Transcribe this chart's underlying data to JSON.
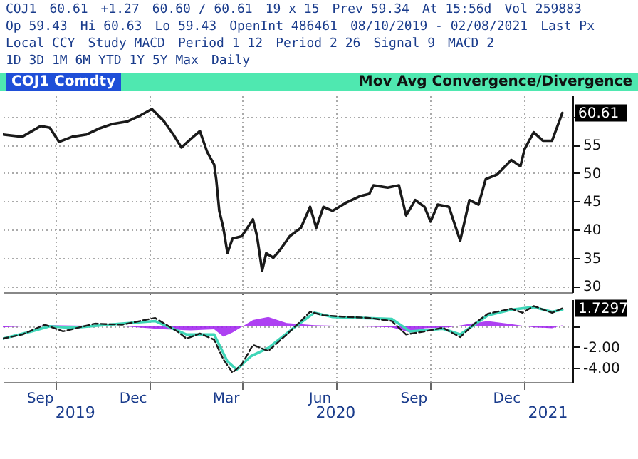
{
  "chart_data": [
    {
      "type": "line",
      "title": "COJ1 Comdty",
      "subtitle": "Mov Avg Convergence/Divergence",
      "annotations": [
        "COJ1",
        "60.61",
        "+1.27",
        "60.60 / 60.61",
        "19 x 15",
        "Prev 59.34",
        "At 15:56d",
        "Vol 259883",
        "Op 59.43",
        "Hi 60.63",
        "Lo 59.43",
        "OpenInt 486461",
        "08/10/2019 - 02/08/2021",
        "Last Px",
        "Local CCY",
        "Study MACD",
        "Period 1 12",
        "Period 2 26",
        "Signal 9",
        "MACD 2",
        "1D 3D 1M 6M YTD 1Y 5Y Max",
        "Daily",
        {
          "text": "60.61",
          "y": 60.61
        }
      ],
      "x": [
        "2019-08-10",
        "2019-08-29",
        "2019-09-16",
        "2019-09-25",
        "2019-10-04",
        "2019-10-17",
        "2019-10-31",
        "2019-11-13",
        "2019-11-26",
        "2019-12-10",
        "2019-12-23",
        "2020-01-03",
        "2020-01-15",
        "2020-01-24",
        "2020-02-01",
        "2020-02-10",
        "2020-02-19",
        "2020-02-26",
        "2020-03-04",
        "2020-03-06",
        "2020-03-09",
        "2020-03-13",
        "2020-03-17",
        "2020-03-22",
        "2020-03-31",
        "2020-04-11",
        "2020-04-15",
        "2020-04-20",
        "2020-04-24",
        "2020-05-01",
        "2020-05-08",
        "2020-05-17",
        "2020-05-28",
        "2020-06-06",
        "2020-06-12",
        "2020-06-19",
        "2020-06-28",
        "2020-07-12",
        "2020-07-25",
        "2020-08-03",
        "2020-08-07",
        "2020-08-21",
        "2020-09-01",
        "2020-09-08",
        "2020-09-17",
        "2020-09-26",
        "2020-10-02",
        "2020-10-09",
        "2020-10-20",
        "2020-10-31",
        "2020-11-09",
        "2020-11-18",
        "2020-11-25",
        "2020-12-06",
        "2020-12-20",
        "2020-12-29",
        "2021-01-02",
        "2021-01-11",
        "2021-01-20",
        "2021-01-29",
        "2021-02-08"
      ],
      "series": [
        {
          "color": "#1a1a1a",
          "values": [
            56.8,
            56.4,
            58.3,
            58,
            55.5,
            56.4,
            56.8,
            57.9,
            58.7,
            59.1,
            60.2,
            61.3,
            59.1,
            56.8,
            54.5,
            56,
            57.4,
            53.8,
            51.5,
            48.9,
            43.3,
            40.3,
            35.8,
            38.4,
            38.8,
            41.8,
            38.8,
            32.7,
            35.8,
            35,
            36.5,
            38.8,
            40.3,
            44,
            40.3,
            44,
            43.3,
            44.8,
            45.9,
            46.3,
            47.8,
            47.4,
            47.8,
            42.5,
            45.2,
            44,
            41.4,
            44.4,
            44,
            38,
            45.2,
            44.4,
            48.9,
            49.7,
            52.3,
            51.2,
            54.2,
            57.2,
            55.7,
            55.7,
            60.61
          ]
        }
      ],
      "xlim": [
        "2019-08-10",
        "2021-02-18"
      ],
      "xticks": [
        {
          "value": "2019-10-01",
          "label": null
        },
        {
          "value": "2020-01-01",
          "label": null
        },
        {
          "value": "2020-04-01",
          "label": null
        },
        {
          "value": "2020-07-01",
          "label": null
        },
        {
          "value": "2020-10-01",
          "label": null
        },
        {
          "value": "2021-01-01",
          "label": null
        }
      ],
      "ylim": [
        28.9,
        63.7
      ],
      "yticks": [
        30,
        35,
        40,
        45,
        50,
        55,
        {
          "value": 60,
          "label": null
        }
      ],
      "grid": true,
      "tick_labels": "y"
    },
    {
      "type": "line",
      "annotations": [
        {
          "text": "1.7297",
          "y": 1.7297
        }
      ],
      "series": [
        {
          "type": "area",
          "color": "#a020f0",
          "x": [
            "2019-08-10",
            "2019-09-25",
            "2019-12-05",
            "2020-01-15",
            "2020-02-10",
            "2020-03-04",
            "2020-03-13",
            "2020-03-22",
            "2020-04-11",
            "2020-04-26",
            "2020-05-14",
            "2020-06-10",
            "2020-08-25",
            "2020-09-12",
            "2020-09-26",
            "2020-10-20",
            "2020-11-14",
            "2020-11-27",
            "2020-12-20",
            "2021-01-11",
            "2021-01-29",
            "2021-02-08"
          ],
          "values": [
            -0.1,
            0.1,
            0,
            -0.3,
            -0.4,
            -0.3,
            -1.0,
            -0.6,
            0.6,
            0.9,
            0.3,
            0.1,
            -0.1,
            -0.6,
            -0.2,
            -0.1,
            0.3,
            0.5,
            0.2,
            -0.1,
            -0.2,
            0.1
          ]
        },
        {
          "color": "#3fd6b8",
          "x": [
            "2019-08-10",
            "2019-09-07",
            "2019-09-25",
            "2019-10-17",
            "2019-12-05",
            "2020-01-06",
            "2020-02-06",
            "2020-03-04",
            "2020-03-17",
            "2020-03-26",
            "2020-04-09",
            "2020-04-26",
            "2020-05-23",
            "2020-06-10",
            "2020-06-28",
            "2020-08-25",
            "2020-09-12",
            "2020-10-14",
            "2020-10-31",
            "2020-11-27",
            "2020-12-20",
            "2021-01-11",
            "2021-01-29",
            "2021-02-08"
          ],
          "values": [
            -1.2,
            -0.5,
            0,
            -0.15,
            0.25,
            0.5,
            -0.8,
            -0.8,
            -3.4,
            -4.2,
            -2.9,
            -2.1,
            0,
            1.3,
            0.9,
            0.7,
            -0.5,
            -0.25,
            -0.8,
            1.05,
            1.6,
            1.85,
            1.4,
            1.6
          ]
        },
        {
          "color": "#1a1a1a",
          "line_style": "dashed",
          "x": [
            "2019-08-10",
            "2019-08-29",
            "2019-09-20",
            "2019-10-08",
            "2019-11-08",
            "2019-12-05",
            "2020-01-06",
            "2020-01-28",
            "2020-02-06",
            "2020-02-19",
            "2020-03-04",
            "2020-03-13",
            "2020-03-22",
            "2020-03-31",
            "2020-04-11",
            "2020-04-26",
            "2020-05-14",
            "2020-05-28",
            "2020-06-06",
            "2020-06-19",
            "2020-07-12",
            "2020-08-03",
            "2020-08-25",
            "2020-09-08",
            "2020-09-26",
            "2020-10-14",
            "2020-10-31",
            "2020-11-14",
            "2020-11-27",
            "2020-12-20",
            "2020-12-31",
            "2021-01-11",
            "2021-01-29",
            "2021-02-08"
          ],
          "values": [
            -1.2,
            -0.8,
            0.15,
            -0.5,
            0.25,
            0.15,
            0.8,
            -0.5,
            -1.2,
            -0.7,
            -1.3,
            -3.2,
            -4.5,
            -3.7,
            -1.8,
            -2.4,
            -0.8,
            0.5,
            1.4,
            1.05,
            0.9,
            0.8,
            0.5,
            -0.8,
            -0.5,
            -0.15,
            -1.05,
            0.25,
            1.2,
            1.7,
            1.3,
            1.95,
            1.3,
            1.7297
          ]
        }
      ],
      "xlim": [
        "2019-08-10",
        "2021-02-18"
      ],
      "xticks": [
        {
          "value": "2019-09-15",
          "label": "Sep"
        },
        {
          "value": "2019-10-01",
          "label": null
        },
        {
          "value": "2019-12-15",
          "label": "Dec"
        },
        {
          "value": "2020-01-01",
          "label": null
        },
        {
          "value": "2020-03-15",
          "label": "Mar"
        },
        {
          "value": "2020-04-01",
          "label": null
        },
        {
          "value": "2020-06-15",
          "label": "Jun"
        },
        {
          "value": "2020-07-01",
          "label": null
        },
        {
          "value": "2020-09-15",
          "label": "Sep"
        },
        {
          "value": "2020-10-01",
          "label": null
        },
        {
          "value": "2020-12-15",
          "label": "Dec"
        },
        {
          "value": "2021-01-01",
          "label": null
        }
      ],
      "x2lim": [
        "2019-08-10",
        "2021-02-18"
      ],
      "x2ticks": [
        {
          "value": "2019-10-20",
          "label": "2019"
        },
        {
          "value": "2020-07-01",
          "label": "2020"
        },
        {
          "value": "2021-01-25",
          "label": "2021"
        }
      ],
      "ylim": [
        -5.4,
        2.6
      ],
      "yticks": [
        {
          "value": -2,
          "label": "-2.00"
        },
        {
          "value": -4,
          "label": "-4.00"
        },
        {
          "value": 0,
          "label": null
        }
      ],
      "grid": true
    }
  ]
}
